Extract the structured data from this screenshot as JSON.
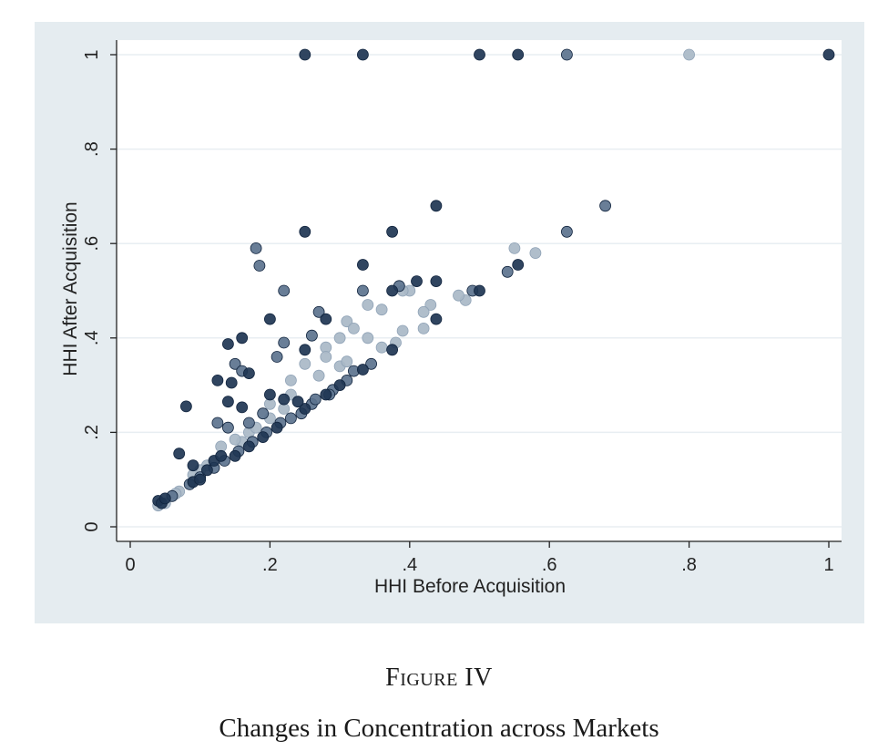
{
  "figure": {
    "label": "Figure IV",
    "title": "Changes in Concentration across Markets"
  },
  "colors": {
    "panel_bg": "#e5ecf0",
    "plot_bg": "#ffffff",
    "grid": "#e8eef2",
    "axis": "#222222",
    "dark_marker": "#1e3553",
    "mid_marker": "#5c738e",
    "light_marker": "#a9b8c7"
  },
  "chart_data": {
    "type": "scatter",
    "title": "",
    "xlabel": "HHI Before Acquisition",
    "ylabel": "HHI After Acquisition",
    "xlim": [
      0,
      1
    ],
    "ylim": [
      0,
      1
    ],
    "xticks": [
      0,
      0.2,
      0.4,
      0.6,
      0.8,
      1
    ],
    "xtick_labels": [
      "0",
      ".2",
      ".4",
      ".6",
      ".8",
      "1"
    ],
    "yticks": [
      0,
      0.2,
      0.4,
      0.6,
      0.8,
      1
    ],
    "ytick_labels": [
      "0",
      ".2",
      ".4",
      ".6",
      ".8",
      "1"
    ],
    "grid": "horizontal",
    "legend": "none",
    "series": [
      {
        "shade": "dark",
        "points": [
          [
            0.25,
            1
          ],
          [
            0.333,
            1
          ],
          [
            0.5,
            1
          ],
          [
            0.555,
            1
          ],
          [
            1,
            1
          ],
          [
            0.438,
            0.68
          ],
          [
            0.25,
            0.625
          ],
          [
            0.375,
            0.625
          ],
          [
            0.333,
            0.555
          ],
          [
            0.555,
            0.555
          ],
          [
            0.375,
            0.5
          ],
          [
            0.5,
            0.5
          ],
          [
            0.41,
            0.52
          ],
          [
            0.438,
            0.52
          ],
          [
            0.2,
            0.44
          ],
          [
            0.28,
            0.44
          ],
          [
            0.438,
            0.44
          ],
          [
            0.25,
            0.375
          ],
          [
            0.375,
            0.375
          ],
          [
            0.333,
            0.333
          ],
          [
            0.14,
            0.387
          ],
          [
            0.16,
            0.4
          ],
          [
            0.125,
            0.31
          ],
          [
            0.145,
            0.305
          ],
          [
            0.17,
            0.325
          ],
          [
            0.2,
            0.28
          ],
          [
            0.25,
            0.25
          ],
          [
            0.28,
            0.28
          ],
          [
            0.3,
            0.3
          ],
          [
            0.08,
            0.255
          ],
          [
            0.14,
            0.265
          ],
          [
            0.16,
            0.253
          ],
          [
            0.22,
            0.27
          ],
          [
            0.24,
            0.265
          ],
          [
            0.07,
            0.155
          ],
          [
            0.09,
            0.13
          ],
          [
            0.11,
            0.12
          ],
          [
            0.12,
            0.14
          ],
          [
            0.13,
            0.15
          ],
          [
            0.15,
            0.15
          ],
          [
            0.17,
            0.17
          ],
          [
            0.19,
            0.19
          ],
          [
            0.21,
            0.21
          ],
          [
            0.04,
            0.055
          ],
          [
            0.045,
            0.05
          ],
          [
            0.05,
            0.06
          ],
          [
            0.09,
            0.095
          ],
          [
            0.1,
            0.1
          ]
        ]
      },
      {
        "shade": "mid",
        "points": [
          [
            0.625,
            1
          ],
          [
            0.68,
            0.68
          ],
          [
            0.625,
            0.625
          ],
          [
            0.18,
            0.59
          ],
          [
            0.185,
            0.553
          ],
          [
            0.22,
            0.5
          ],
          [
            0.333,
            0.5
          ],
          [
            0.385,
            0.51
          ],
          [
            0.49,
            0.5
          ],
          [
            0.54,
            0.54
          ],
          [
            0.27,
            0.455
          ],
          [
            0.26,
            0.405
          ],
          [
            0.22,
            0.39
          ],
          [
            0.15,
            0.345
          ],
          [
            0.16,
            0.33
          ],
          [
            0.21,
            0.36
          ],
          [
            0.125,
            0.22
          ],
          [
            0.14,
            0.21
          ],
          [
            0.17,
            0.22
          ],
          [
            0.19,
            0.24
          ],
          [
            0.23,
            0.23
          ],
          [
            0.26,
            0.26
          ],
          [
            0.29,
            0.29
          ],
          [
            0.31,
            0.31
          ],
          [
            0.32,
            0.33
          ],
          [
            0.345,
            0.345
          ],
          [
            0.1,
            0.105
          ],
          [
            0.12,
            0.125
          ],
          [
            0.135,
            0.14
          ],
          [
            0.155,
            0.16
          ],
          [
            0.175,
            0.18
          ],
          [
            0.195,
            0.2
          ],
          [
            0.215,
            0.22
          ],
          [
            0.245,
            0.24
          ],
          [
            0.265,
            0.27
          ],
          [
            0.285,
            0.28
          ],
          [
            0.06,
            0.065
          ],
          [
            0.085,
            0.09
          ]
        ]
      },
      {
        "shade": "light",
        "points": [
          [
            0.8,
            1
          ],
          [
            0.55,
            0.59
          ],
          [
            0.58,
            0.58
          ],
          [
            0.43,
            0.47
          ],
          [
            0.48,
            0.48
          ],
          [
            0.47,
            0.49
          ],
          [
            0.4,
            0.5
          ],
          [
            0.39,
            0.5
          ],
          [
            0.34,
            0.47
          ],
          [
            0.36,
            0.46
          ],
          [
            0.42,
            0.455
          ],
          [
            0.31,
            0.435
          ],
          [
            0.32,
            0.42
          ],
          [
            0.39,
            0.415
          ],
          [
            0.42,
            0.42
          ],
          [
            0.3,
            0.4
          ],
          [
            0.34,
            0.4
          ],
          [
            0.36,
            0.38
          ],
          [
            0.28,
            0.38
          ],
          [
            0.38,
            0.39
          ],
          [
            0.25,
            0.345
          ],
          [
            0.28,
            0.36
          ],
          [
            0.3,
            0.34
          ],
          [
            0.23,
            0.31
          ],
          [
            0.27,
            0.32
          ],
          [
            0.31,
            0.35
          ],
          [
            0.2,
            0.26
          ],
          [
            0.2,
            0.23
          ],
          [
            0.22,
            0.25
          ],
          [
            0.23,
            0.28
          ],
          [
            0.17,
            0.2
          ],
          [
            0.16,
            0.18
          ],
          [
            0.18,
            0.21
          ],
          [
            0.15,
            0.185
          ],
          [
            0.13,
            0.17
          ],
          [
            0.11,
            0.13
          ],
          [
            0.1,
            0.12
          ],
          [
            0.09,
            0.11
          ],
          [
            0.07,
            0.075
          ],
          [
            0.065,
            0.07
          ],
          [
            0.04,
            0.045
          ],
          [
            0.05,
            0.05
          ]
        ]
      }
    ]
  }
}
